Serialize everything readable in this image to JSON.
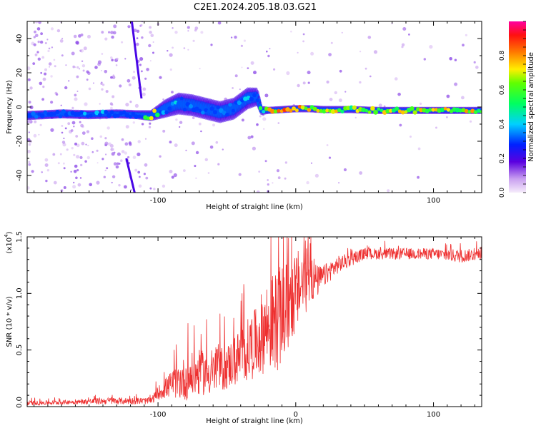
{
  "title": "C2E1.2024.205.18.03.G21",
  "chart_data": [
    {
      "type": "heatmap",
      "xlabel": "Height of straight line (km)",
      "ylabel": "Frequency (Hz)",
      "xlim": [
        -195,
        135
      ],
      "ylim": [
        -50,
        50
      ],
      "xticks": [
        -100,
        0,
        100
      ],
      "xtick_labels": [
        "-100",
        "",
        "100"
      ],
      "yticks": [
        -40,
        -20,
        0,
        20,
        40
      ],
      "ytick_labels": [
        "-40",
        "-20",
        "0",
        "20",
        "40"
      ],
      "colorbar": {
        "label": "Normalized spectral amplitude",
        "range": [
          0,
          1
        ],
        "ticks": [
          0.0,
          0.2,
          0.4,
          0.6,
          0.8
        ],
        "tick_labels": [
          "0.0",
          "0.2",
          "0.4",
          "0.6",
          "0.8"
        ]
      },
      "ridge": {
        "x": [
          -195,
          -170,
          -150,
          -130,
          -115,
          -105,
          -95,
          -85,
          -75,
          -65,
          -55,
          -45,
          -35,
          -28,
          -25,
          -20,
          -10,
          0,
          10,
          20,
          40,
          60,
          80,
          100,
          120,
          135
        ],
        "y": [
          -5,
          -4,
          -4.5,
          -4,
          -4.5,
          -5,
          -1,
          2,
          1,
          -1,
          -3,
          -1,
          5,
          6,
          -2,
          -2,
          -1.5,
          -1,
          -1,
          -1.5,
          -1.5,
          -2,
          -2,
          -2,
          -2,
          -2
        ],
        "width": [
          2.5,
          2.5,
          2.5,
          2.5,
          2.5,
          3,
          5,
          6,
          6,
          6,
          6,
          6,
          6,
          5,
          2.5,
          2,
          2,
          2,
          2,
          2,
          2,
          2,
          2,
          2,
          2,
          2
        ],
        "amplitude": [
          0.35,
          0.4,
          0.45,
          0.4,
          0.4,
          0.85,
          0.4,
          0.45,
          0.4,
          0.4,
          0.35,
          0.4,
          0.45,
          0.4,
          0.6,
          0.85,
          0.9,
          0.9,
          0.85,
          0.8,
          0.75,
          0.8,
          0.8,
          0.8,
          0.8,
          0.8
        ]
      },
      "streaks": [
        {
          "x": [
            -119,
            -112
          ],
          "y": [
            50,
            5
          ]
        },
        {
          "x": [
            -123,
            -117
          ],
          "y": [
            -30,
            -50
          ]
        }
      ],
      "grid": false
    },
    {
      "type": "line",
      "xlabel": "Height of straight line (km)",
      "ylabel": "SNR (10 * v/v)",
      "y_multiplier_label": "(x10",
      "y_multiplier_exp": "4",
      "y_multiplier_close": ")",
      "xlim": [
        -195,
        135
      ],
      "ylim": [
        0,
        1.5
      ],
      "xticks": [
        -100,
        0,
        100
      ],
      "xtick_labels": [
        "-100",
        "0",
        "100"
      ],
      "yticks": [
        0.0,
        0.5,
        1.0,
        1.5
      ],
      "ytick_labels": [
        "0.0",
        "0.5",
        "1.0",
        "1.5"
      ],
      "color": "#ee3030",
      "envelope": {
        "x": [
          -195,
          -160,
          -140,
          -105,
          -100,
          -90,
          -80,
          -70,
          -60,
          -50,
          -40,
          -30,
          -22,
          -15,
          -10,
          -5,
          0,
          5,
          10,
          15,
          20,
          30,
          40,
          50,
          70,
          100,
          120,
          135
        ],
        "mean": [
          0.03,
          0.04,
          0.05,
          0.05,
          0.12,
          0.2,
          0.25,
          0.3,
          0.3,
          0.35,
          0.45,
          0.55,
          0.7,
          0.75,
          0.8,
          0.9,
          1.0,
          1.1,
          1.2,
          1.1,
          1.15,
          1.25,
          1.3,
          1.35,
          1.35,
          1.35,
          1.33,
          1.35
        ],
        "spread": [
          0.02,
          0.02,
          0.03,
          0.03,
          0.06,
          0.12,
          0.2,
          0.2,
          0.2,
          0.2,
          0.25,
          0.3,
          0.4,
          0.45,
          0.45,
          0.4,
          0.35,
          0.35,
          0.3,
          0.15,
          0.1,
          0.08,
          0.06,
          0.05,
          0.05,
          0.05,
          0.06,
          0.05
        ]
      },
      "grid": false
    }
  ]
}
